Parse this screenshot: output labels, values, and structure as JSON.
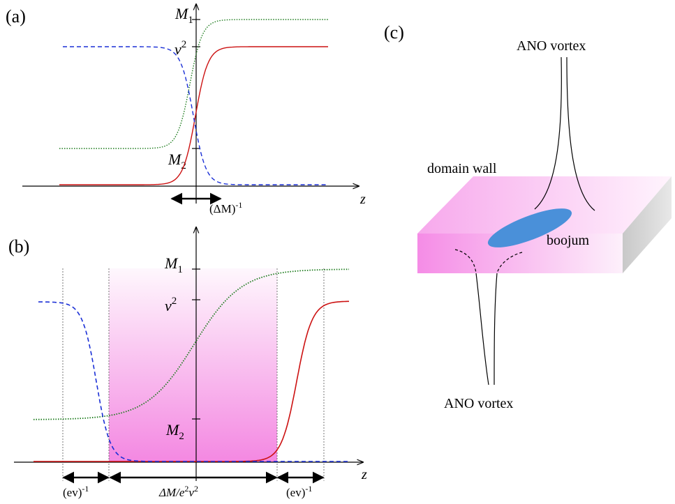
{
  "panel_a": {
    "label": "(a)",
    "z_label": "z",
    "m1_label": "M",
    "m1_sub": "1",
    "v2_label": "v",
    "v2_sup": "2",
    "m2_label": "M",
    "m2_sub": "2",
    "width_label": "(ΔM)",
    "width_label_sup": "-1",
    "colors": {
      "dashed": "#1a2fd6",
      "solid": "#cc1111",
      "dotted": "#1a7a1a"
    }
  },
  "panel_b": {
    "label": "(b)",
    "z_label": "z",
    "m1_label": "M",
    "m1_sub": "1",
    "v2_label": "v",
    "v2_sup": "2",
    "m2_label": "M",
    "m2_sub": "2",
    "left_width": "(ev)",
    "left_width_sup": "-1",
    "center_width_main": "ΔM/e",
    "center_width_sup1": "2",
    "center_width_mid": "v",
    "center_width_sup2": "2",
    "right_width": "(ev)",
    "right_width_sup": "-1",
    "shade_color": "#f060d8"
  },
  "panel_c": {
    "label": "(c)",
    "top_vortex": "ANO vortex",
    "bottom_vortex": "ANO vortex",
    "domain_wall": "domain wall",
    "boojum": "boojum",
    "boojum_color": "#4a90d9"
  }
}
